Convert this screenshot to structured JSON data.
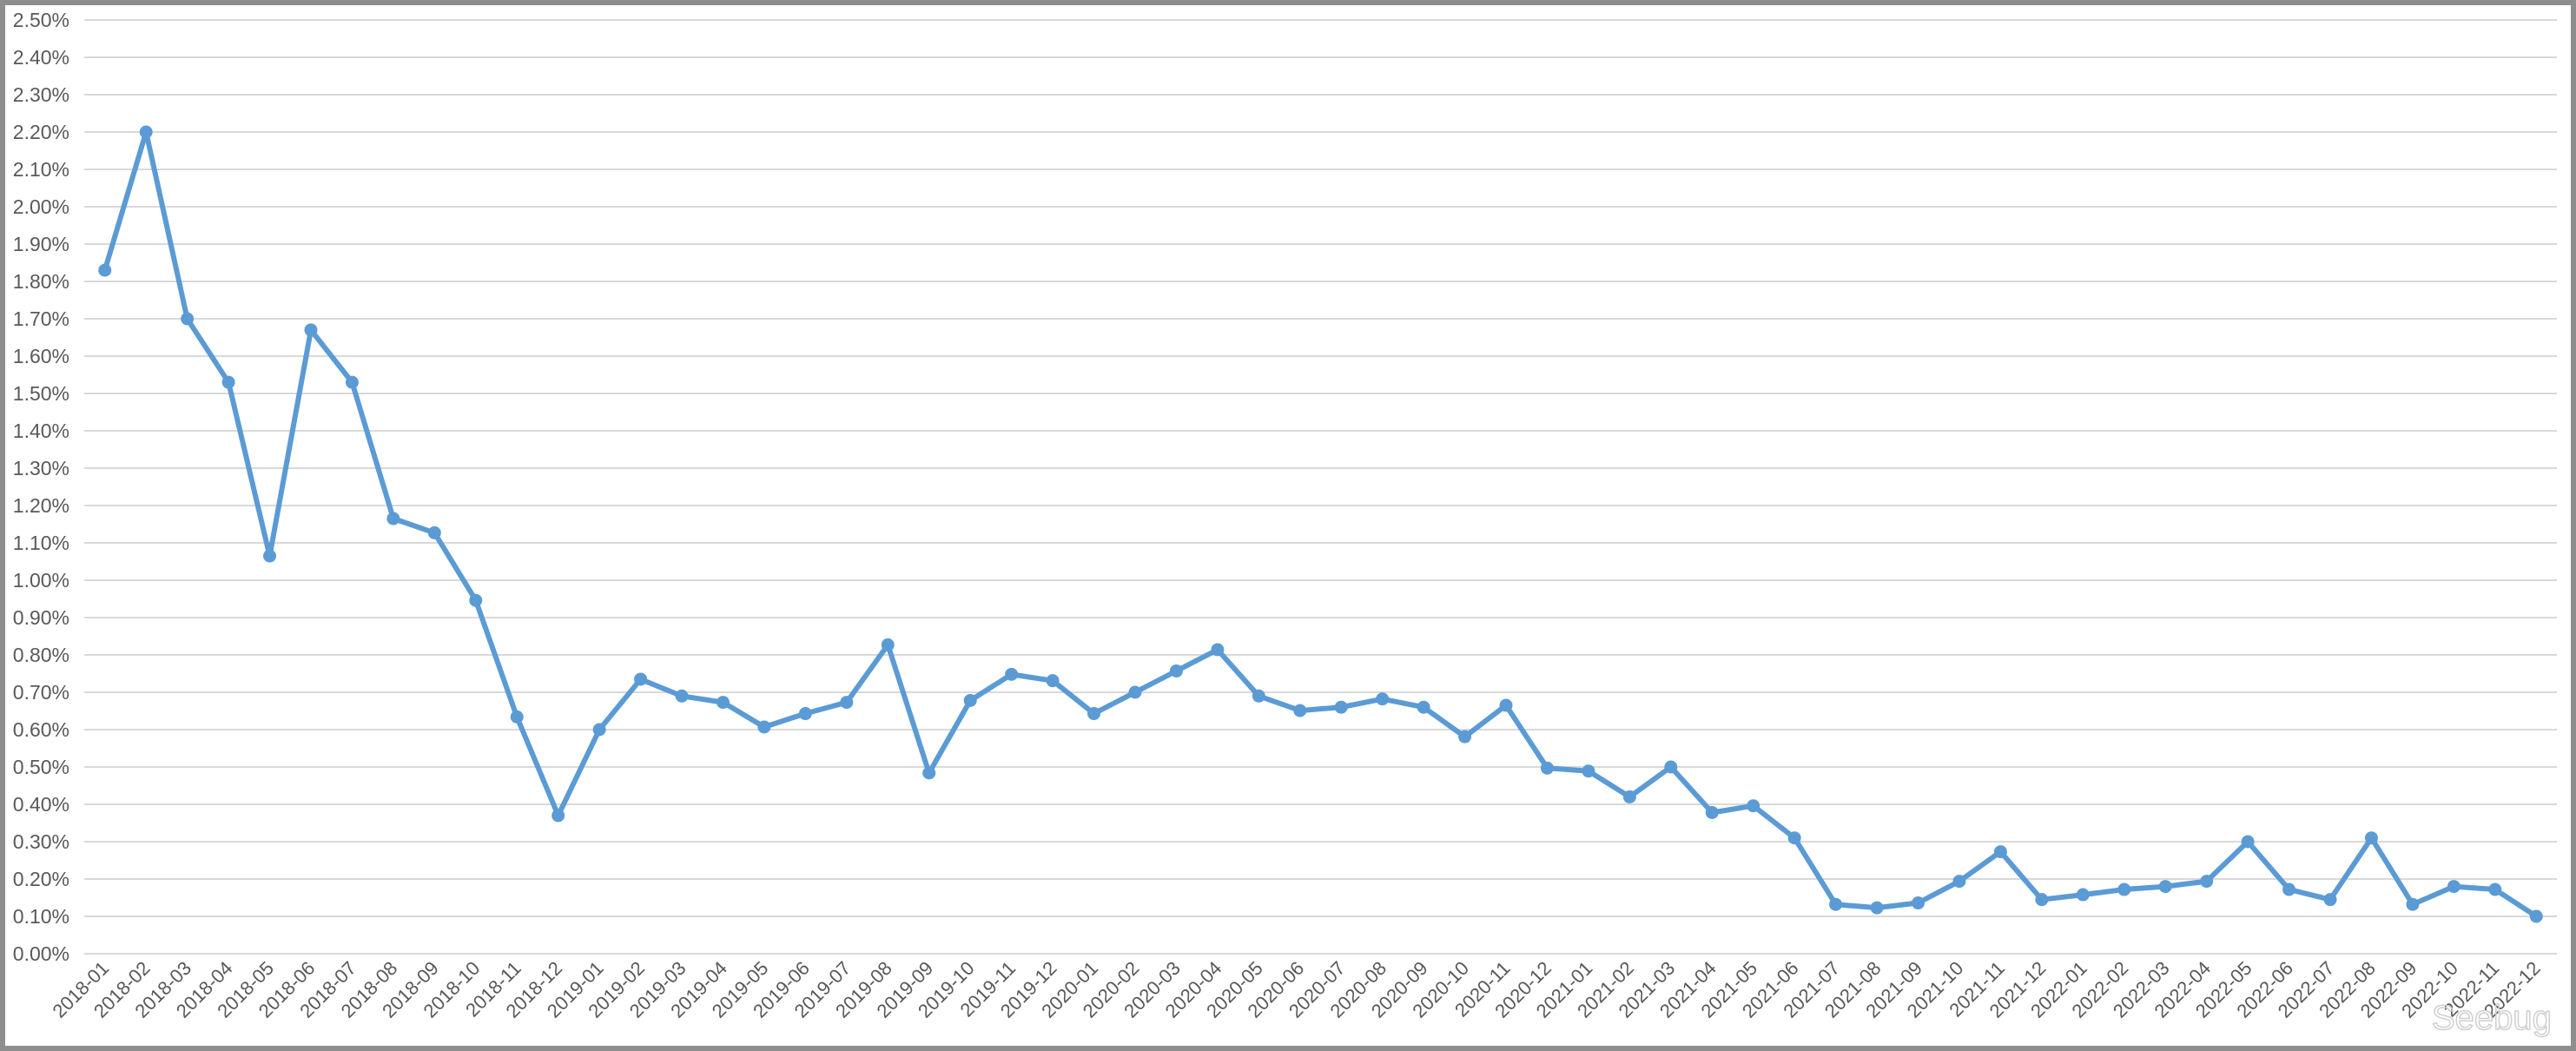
{
  "chart_data": {
    "type": "line",
    "title": "",
    "xlabel": "",
    "ylabel": "",
    "ylim": [
      0,
      2.5
    ],
    "y_tick_step": 0.1,
    "y_format": "percent, 2 decimals",
    "grid": "horizontal",
    "legend": "none",
    "colors": {
      "line": "#5b9bd5",
      "grid": "#d9d9d9",
      "text": "#595959",
      "border": "#8e8e8e"
    },
    "categories": [
      "2018-01",
      "2018-02",
      "2018-03",
      "2018-04",
      "2018-05",
      "2018-06",
      "2018-07",
      "2018-08",
      "2018-09",
      "2018-10",
      "2018-11",
      "2018-12",
      "2019-01",
      "2019-02",
      "2019-03",
      "2019-04",
      "2019-05",
      "2019-06",
      "2019-07",
      "2019-08",
      "2019-09",
      "2019-10",
      "2019-11",
      "2019-12",
      "2020-01",
      "2020-02",
      "2020-03",
      "2020-04",
      "2020-05",
      "2020-06",
      "2020-07",
      "2020-08",
      "2020-09",
      "2020-10",
      "2020-11",
      "2020-12",
      "2021-01",
      "2021-02",
      "2021-03",
      "2021-04",
      "2021-05",
      "2021-06",
      "2021-07",
      "2021-08",
      "2021-09",
      "2021-10",
      "2021-11",
      "2021-12",
      "2022-01",
      "2022-02",
      "2022-03",
      "2022-04",
      "2022-05",
      "2022-06",
      "2022-07",
      "2022-08",
      "2022-09",
      "2022-10",
      "2022-11",
      "2022-12"
    ],
    "values": [
      1.83,
      2.2,
      1.7,
      1.53,
      1.065,
      1.67,
      1.53,
      1.165,
      1.127,
      0.946,
      0.634,
      0.37,
      0.6,
      0.735,
      0.69,
      0.673,
      0.607,
      0.643,
      0.673,
      0.827,
      0.484,
      0.678,
      0.748,
      0.731,
      0.643,
      0.7,
      0.757,
      0.814,
      0.69,
      0.651,
      0.66,
      0.682,
      0.66,
      0.581,
      0.665,
      0.497,
      0.489,
      0.42,
      0.5,
      0.378,
      0.396,
      0.31,
      0.132,
      0.123,
      0.136,
      0.194,
      0.273,
      0.145,
      0.158,
      0.172,
      0.18,
      0.194,
      0.3,
      0.172,
      0.145,
      0.31,
      0.132,
      0.18,
      0.172,
      0.1
    ]
  },
  "watermark": "Seebug"
}
